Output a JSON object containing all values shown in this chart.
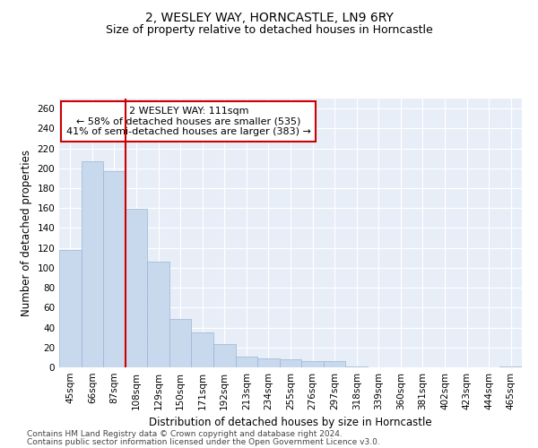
{
  "title": "2, WESLEY WAY, HORNCASTLE, LN9 6RY",
  "subtitle": "Size of property relative to detached houses in Horncastle",
  "xlabel": "Distribution of detached houses by size in Horncastle",
  "ylabel": "Number of detached properties",
  "categories": [
    "45sqm",
    "66sqm",
    "87sqm",
    "108sqm",
    "129sqm",
    "150sqm",
    "171sqm",
    "192sqm",
    "213sqm",
    "234sqm",
    "255sqm",
    "276sqm",
    "297sqm",
    "318sqm",
    "339sqm",
    "360sqm",
    "381sqm",
    "402sqm",
    "423sqm",
    "444sqm",
    "465sqm"
  ],
  "values": [
    118,
    207,
    197,
    159,
    106,
    49,
    35,
    23,
    11,
    9,
    8,
    6,
    6,
    1,
    0,
    0,
    0,
    0,
    0,
    0,
    1
  ],
  "bar_color": "#c8d9ee",
  "bar_edgecolor": "#9ab4d4",
  "red_line_color": "#cc0000",
  "annotation_line1": "2 WESLEY WAY: 111sqm",
  "annotation_line2": "← 58% of detached houses are smaller (535)",
  "annotation_line3": "41% of semi-detached houses are larger (383) →",
  "annotation_box_facecolor": "#ffffff",
  "annotation_box_edgecolor": "#cc0000",
  "ylim": [
    0,
    270
  ],
  "yticks": [
    0,
    20,
    40,
    60,
    80,
    100,
    120,
    140,
    160,
    180,
    200,
    220,
    240,
    260
  ],
  "background_color": "#e8eef8",
  "grid_color": "#ffffff",
  "footer_line1": "Contains HM Land Registry data © Crown copyright and database right 2024.",
  "footer_line2": "Contains public sector information licensed under the Open Government Licence v3.0.",
  "title_fontsize": 10,
  "subtitle_fontsize": 9,
  "axis_label_fontsize": 8.5,
  "tick_fontsize": 7.5,
  "annotation_fontsize": 8,
  "footer_fontsize": 6.5
}
